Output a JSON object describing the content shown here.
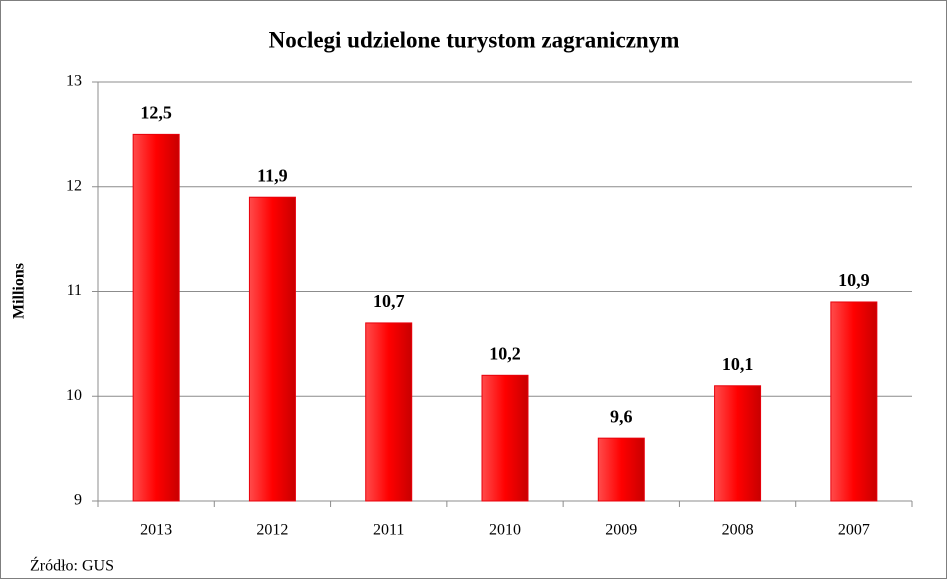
{
  "chart_data": {
    "type": "bar",
    "title": "Noclegi udzielone turystom zagranicznym",
    "y_label": "Millions",
    "categories": [
      "2013",
      "2012",
      "2011",
      "2010",
      "2009",
      "2008",
      "2007"
    ],
    "values": [
      12.5,
      11.9,
      10.7,
      10.2,
      9.6,
      10.1,
      10.9
    ],
    "value_labels": [
      "12,5",
      "11,9",
      "10,7",
      "10,2",
      "9,6",
      "10,1",
      "10,9"
    ],
    "color": "#e8000b",
    "ylim": [
      9,
      13
    ],
    "yticks": [
      9,
      10,
      11,
      12,
      13
    ],
    "grid": true,
    "source": "Źródło: GUS"
  }
}
